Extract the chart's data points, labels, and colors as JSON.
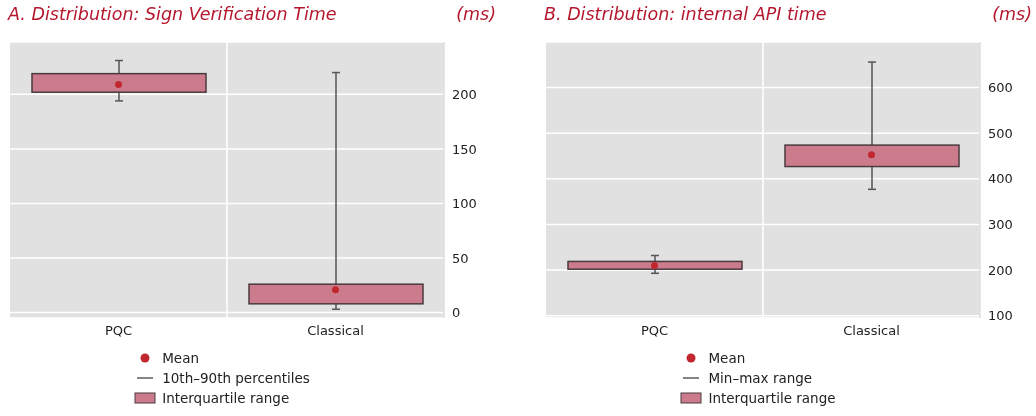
{
  "chart_data": [
    {
      "type": "box",
      "title": "A. Distribution: Sign Verification Time",
      "ylabel": "(ms)",
      "categories": [
        "PQC",
        "Classical"
      ],
      "ylim": [
        -5,
        248
      ],
      "yticks": [
        0,
        50,
        100,
        150,
        200
      ],
      "grid": true,
      "legend": "bottom",
      "annotations": [
        "10th–90th percentiles"
      ],
      "series": [
        {
          "name": "Mean",
          "type": "scatter",
          "color": "#c0282d",
          "values": [
            209,
            21
          ]
        },
        {
          "name": "Interquartile range",
          "color": "#cc7b8c",
          "boxes": [
            {
              "low": 194,
              "q1": 202,
              "q3": 219,
              "high": 231
            },
            {
              "low": 3,
              "q1": 8,
              "q3": 26,
              "high": 220
            }
          ]
        }
      ]
    },
    {
      "type": "box",
      "title": "B. Distribution: internal API time",
      "ylabel": "(ms)",
      "categories": [
        "PQC",
        "Classical"
      ],
      "ylim": [
        95,
        700
      ],
      "yticks": [
        100,
        200,
        300,
        400,
        500,
        600
      ],
      "grid": true,
      "legend": "bottom",
      "annotations": [
        "Min–max range"
      ],
      "series": [
        {
          "name": "Mean",
          "type": "scatter",
          "color": "#c0282d",
          "values": [
            210,
            453
          ]
        },
        {
          "name": "Interquartile range",
          "color": "#cc7b8c",
          "boxes": [
            {
              "low": 193,
              "q1": 202,
              "q3": 219,
              "high": 232
            },
            {
              "low": 377,
              "q1": 427,
              "q3": 474,
              "high": 656
            }
          ]
        }
      ]
    }
  ]
}
